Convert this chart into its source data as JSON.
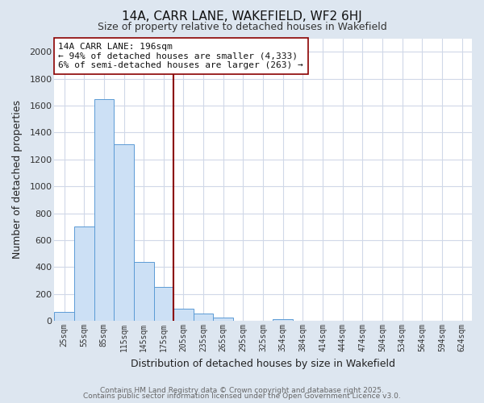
{
  "title": "14A, CARR LANE, WAKEFIELD, WF2 6HJ",
  "subtitle": "Size of property relative to detached houses in Wakefield",
  "xlabel": "Distribution of detached houses by size in Wakefield",
  "ylabel": "Number of detached properties",
  "bar_labels": [
    "25sqm",
    "55sqm",
    "85sqm",
    "115sqm",
    "145sqm",
    "175sqm",
    "205sqm",
    "235sqm",
    "265sqm",
    "295sqm",
    "325sqm",
    "354sqm",
    "384sqm",
    "414sqm",
    "444sqm",
    "474sqm",
    "504sqm",
    "534sqm",
    "564sqm",
    "594sqm",
    "624sqm"
  ],
  "bar_values": [
    65,
    700,
    1650,
    1310,
    440,
    255,
    90,
    52,
    25,
    0,
    0,
    13,
    0,
    0,
    0,
    0,
    0,
    0,
    0,
    0,
    0
  ],
  "bar_color": "#cce0f5",
  "bar_edge_color": "#5b9bd5",
  "vline_color": "#8b0000",
  "annotation_text": "14A CARR LANE: 196sqm\n← 94% of detached houses are smaller (4,333)\n6% of semi-detached houses are larger (263) →",
  "annotation_box_edge": "#8b0000",
  "ylim": [
    0,
    2100
  ],
  "yticks": [
    0,
    200,
    400,
    600,
    800,
    1000,
    1200,
    1400,
    1600,
    1800,
    2000
  ],
  "fig_bg_color": "#dde6f0",
  "ax_bg_color": "#ffffff",
  "grid_color": "#d0d8e8",
  "footer_line1": "Contains HM Land Registry data © Crown copyright and database right 2025.",
  "footer_line2": "Contains public sector information licensed under the Open Government Licence v3.0."
}
